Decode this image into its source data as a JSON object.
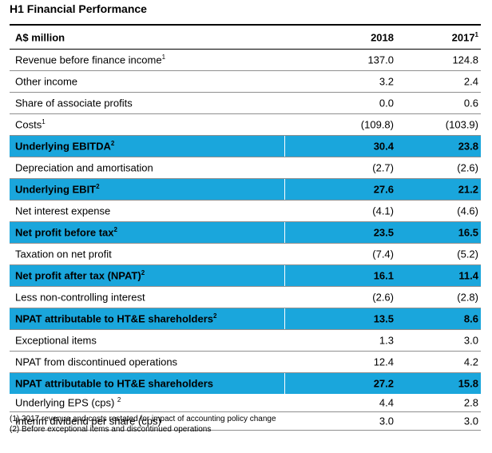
{
  "title": "H1 Financial Performance",
  "header": {
    "label": "A$ million",
    "col1": "2018",
    "col2": "2017",
    "col2_sup": "1"
  },
  "rows": [
    {
      "label": "Revenue before finance income",
      "sup": "1",
      "v2018": "137.0",
      "v2017": "124.8",
      "style": "plain"
    },
    {
      "label": "Other income",
      "sup": "",
      "v2018": "3.2",
      "v2017": "2.4",
      "style": "plain"
    },
    {
      "label": "Share of associate profits",
      "sup": "",
      "v2018": "0.0",
      "v2017": "0.6",
      "style": "plain"
    },
    {
      "label": "Costs",
      "sup": "1",
      "v2018": "(109.8)",
      "v2017": "(103.9)",
      "style": "plain"
    },
    {
      "label": "Underlying EBITDA",
      "sup": "2",
      "v2018": "30.4",
      "v2017": "23.8",
      "style": "highlight"
    },
    {
      "label": "Depreciation and amortisation",
      "sup": "",
      "v2018": "(2.7)",
      "v2017": "(2.6)",
      "style": "plain"
    },
    {
      "label": "Underlying EBIT",
      "sup": "2",
      "v2018": "27.6",
      "v2017": "21.2",
      "style": "highlight"
    },
    {
      "label": "Net interest expense",
      "sup": "",
      "v2018": "(4.1)",
      "v2017": "(4.6)",
      "style": "plain"
    },
    {
      "label": "Net profit before tax",
      "sup": "2",
      "v2018": "23.5",
      "v2017": "16.5",
      "style": "highlight"
    },
    {
      "label": "Taxation on net profit",
      "sup": "",
      "v2018": "(7.4)",
      "v2017": "(5.2)",
      "style": "plain"
    },
    {
      "label": "Net profit after tax (NPAT)",
      "sup": "2",
      "v2018": "16.1",
      "v2017": "11.4",
      "style": "highlight"
    },
    {
      "label": "Less non-controlling interest",
      "sup": "",
      "v2018": "(2.6)",
      "v2017": "(2.8)",
      "style": "plain"
    },
    {
      "label": "NPAT attributable to HT&E shareholders",
      "sup": "2",
      "v2018": "13.5",
      "v2017": "8.6",
      "style": "highlight"
    },
    {
      "label": "Exceptional items",
      "sup": "",
      "v2018": "1.3",
      "v2017": "3.0",
      "style": "plain"
    },
    {
      "label": "NPAT from discontinued operations",
      "sup": "",
      "v2018": "12.4",
      "v2017": "4.2",
      "style": "plain"
    },
    {
      "label": "NPAT attributable to HT&E shareholders",
      "sup": "",
      "v2018": "27.2",
      "v2017": "15.8",
      "style": "highlight2"
    },
    {
      "label": "Underlying EPS (cps) ",
      "sup": "2",
      "v2018": "4.4",
      "v2017": "2.8",
      "style": "tight"
    },
    {
      "label": "Interim dividend per share (cps)",
      "sup": "",
      "v2018": "3.0",
      "v2017": "3.0",
      "style": "tight"
    }
  ],
  "notes": [
    "(1)  2017 revenue and costs restated for impact of accounting policy change",
    "(2)  Before exceptional items and discontinued operations"
  ],
  "colors": {
    "highlight": "#1aa6dc"
  }
}
